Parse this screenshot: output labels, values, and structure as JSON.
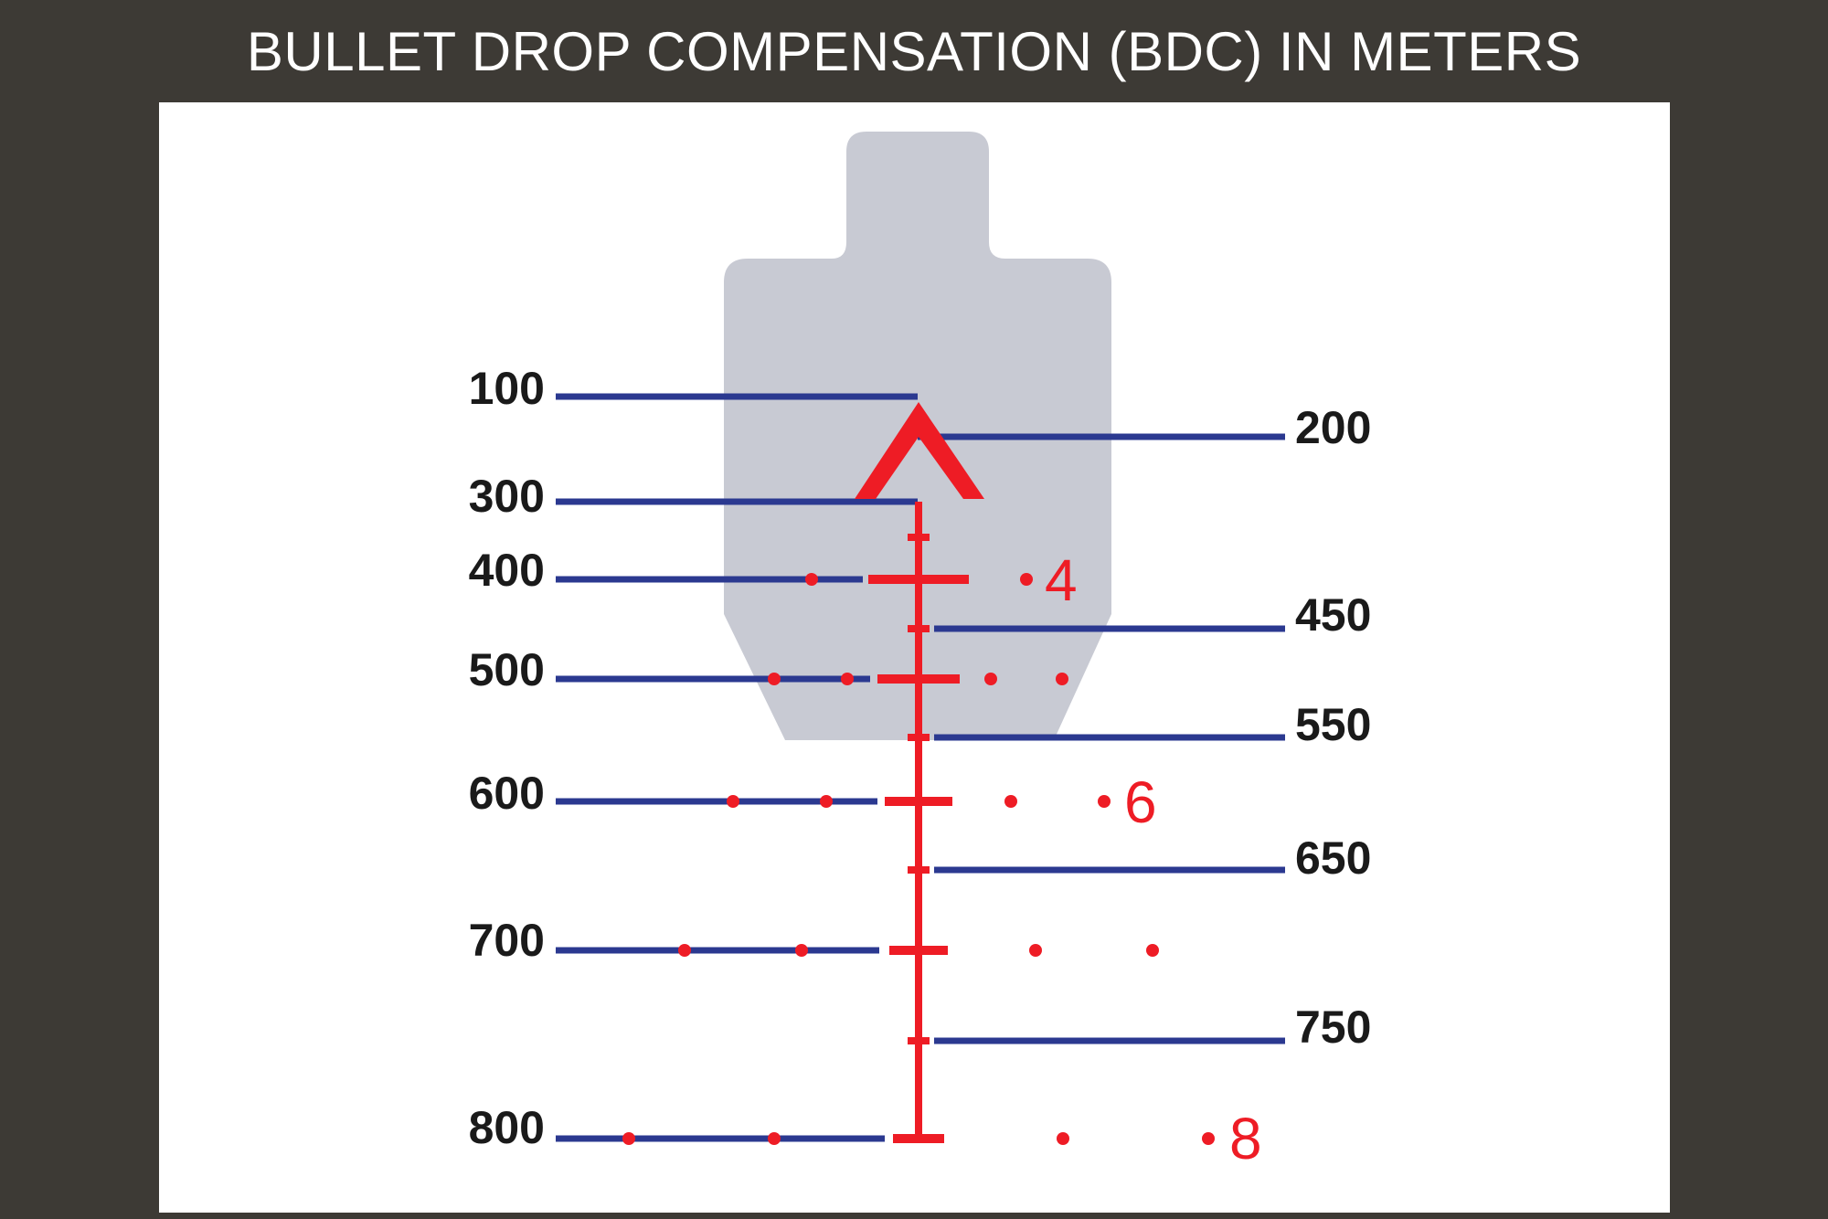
{
  "title": "BULLET DROP COMPENSATION (BDC) IN METERS",
  "colors": {
    "background": "#3d3a35",
    "panel": "#ffffff",
    "target": "#c8cad3",
    "reticle": "#ee1c25",
    "range_line": "#2b3990",
    "label": "#1a1a1a"
  },
  "ranges_left": [
    {
      "label": "100"
    },
    {
      "label": "300"
    },
    {
      "label": "400"
    },
    {
      "label": "500"
    },
    {
      "label": "600"
    },
    {
      "label": "700"
    },
    {
      "label": "800"
    }
  ],
  "ranges_right": [
    {
      "label": "200"
    },
    {
      "label": "450"
    },
    {
      "label": "550"
    },
    {
      "label": "650"
    },
    {
      "label": "750"
    }
  ],
  "hold_labels": [
    {
      "label": "4"
    },
    {
      "label": "6"
    },
    {
      "label": "8"
    }
  ]
}
